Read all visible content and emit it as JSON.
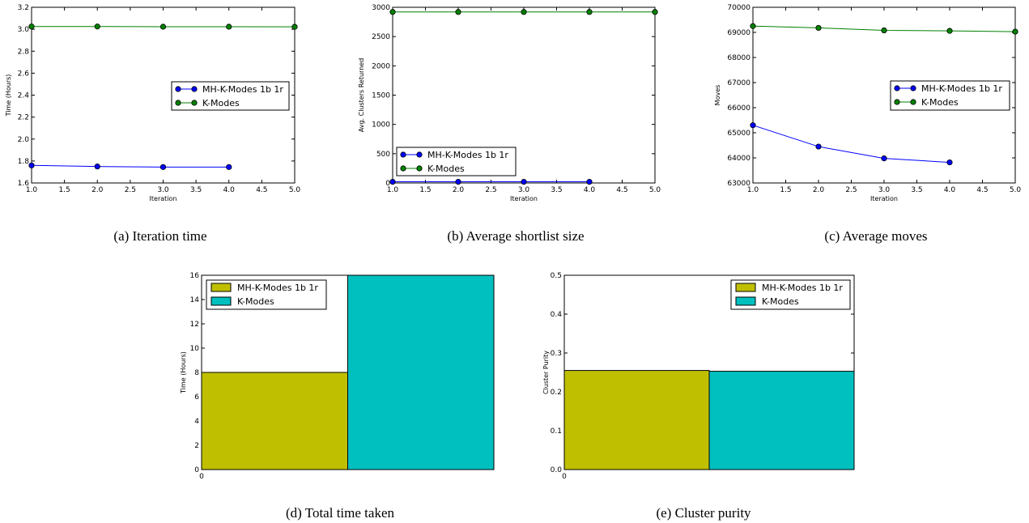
{
  "colors": {
    "mh_line": "#0000ff",
    "km_line": "#008000",
    "mh_bar": "#bfbf00",
    "km_bar": "#00bfbf"
  },
  "chart_data": [
    {
      "id": "a",
      "type": "line",
      "caption": "(a) Iteration time",
      "xlabel": "Iteration",
      "ylabel": "Time (Hours)",
      "xlim": [
        1.0,
        5.0
      ],
      "ylim": [
        1.6,
        3.2
      ],
      "xticks": [
        "1.0",
        "1.5",
        "2.0",
        "2.5",
        "3.0",
        "3.5",
        "4.0",
        "4.5",
        "5.0"
      ],
      "yticks": [
        "1.6",
        "1.8",
        "2.0",
        "2.2",
        "2.4",
        "2.6",
        "2.8",
        "3.0",
        "3.2"
      ],
      "legend": "center-right",
      "series": [
        {
          "name": "MH-K-Modes 1b 1r",
          "color_key": "mh_line",
          "x": [
            1,
            2,
            3,
            4
          ],
          "y": [
            1.76,
            1.75,
            1.745,
            1.745
          ]
        },
        {
          "name": "K-Modes",
          "color_key": "km_line",
          "x": [
            1,
            2,
            3,
            4,
            5
          ],
          "y": [
            3.025,
            3.025,
            3.023,
            3.023,
            3.022
          ]
        }
      ]
    },
    {
      "id": "b",
      "type": "line",
      "caption": "(b) Average shortlist size",
      "xlabel": "Iteration",
      "ylabel": "Avg. Clusters Returned",
      "xlim": [
        1.0,
        5.0
      ],
      "ylim": [
        0,
        3000
      ],
      "xticks": [
        "1.0",
        "1.5",
        "2.0",
        "2.5",
        "3.0",
        "3.5",
        "4.0",
        "4.5",
        "5.0"
      ],
      "yticks": [
        "0",
        "500",
        "1000",
        "1500",
        "2000",
        "2500",
        "3000"
      ],
      "legend": "lower-left",
      "series": [
        {
          "name": "MH-K-Modes 1b 1r",
          "color_key": "mh_line",
          "x": [
            1,
            2,
            3,
            4
          ],
          "y": [
            20,
            20,
            20,
            20
          ]
        },
        {
          "name": "K-Modes",
          "color_key": "km_line",
          "x": [
            1,
            2,
            3,
            4,
            5
          ],
          "y": [
            2920,
            2920,
            2920,
            2920,
            2920
          ]
        }
      ]
    },
    {
      "id": "c",
      "type": "line",
      "caption": "(c) Average moves",
      "xlabel": "Iteration",
      "ylabel": "Moves",
      "xlim": [
        1.0,
        5.0
      ],
      "ylim": [
        63000,
        70000
      ],
      "xticks": [
        "1.0",
        "1.5",
        "2.0",
        "2.5",
        "3.0",
        "3.5",
        "4.0",
        "4.5",
        "5.0"
      ],
      "yticks": [
        "63000",
        "64000",
        "65000",
        "66000",
        "67000",
        "68000",
        "69000",
        "70000"
      ],
      "legend": "center-right",
      "series": [
        {
          "name": "MH-K-Modes 1b 1r",
          "color_key": "mh_line",
          "x": [
            1,
            2,
            3,
            4
          ],
          "y": [
            65300,
            64450,
            63980,
            63820
          ]
        },
        {
          "name": "K-Modes",
          "color_key": "km_line",
          "x": [
            1,
            2,
            3,
            4,
            5
          ],
          "y": [
            69250,
            69180,
            69080,
            69060,
            69030
          ]
        }
      ]
    },
    {
      "id": "d",
      "type": "bar",
      "caption": "(d) Total time taken",
      "xlabel": "",
      "ylabel": "Time (Hours)",
      "ylim": [
        0,
        16
      ],
      "yticks": [
        "0",
        "2",
        "4",
        "6",
        "8",
        "10",
        "12",
        "14",
        "16"
      ],
      "xticks": [
        "0"
      ],
      "legend": "top-left",
      "series": [
        {
          "name": "MH-K-Modes 1b 1r",
          "color_key": "mh_bar",
          "value": 8.0
        },
        {
          "name": "K-Modes",
          "color_key": "km_bar",
          "value": 16.0
        }
      ]
    },
    {
      "id": "e",
      "type": "bar",
      "caption": "(e) Cluster purity",
      "xlabel": "",
      "ylabel": "Cluster Purity",
      "ylim": [
        0,
        0.5
      ],
      "yticks": [
        "0.0",
        "0.1",
        "0.2",
        "0.3",
        "0.4",
        "0.5"
      ],
      "xticks": [
        "0"
      ],
      "legend": "top-right",
      "series": [
        {
          "name": "MH-K-Modes 1b 1r",
          "color_key": "mh_bar",
          "value": 0.255
        },
        {
          "name": "K-Modes",
          "color_key": "km_bar",
          "value": 0.253
        }
      ]
    }
  ]
}
